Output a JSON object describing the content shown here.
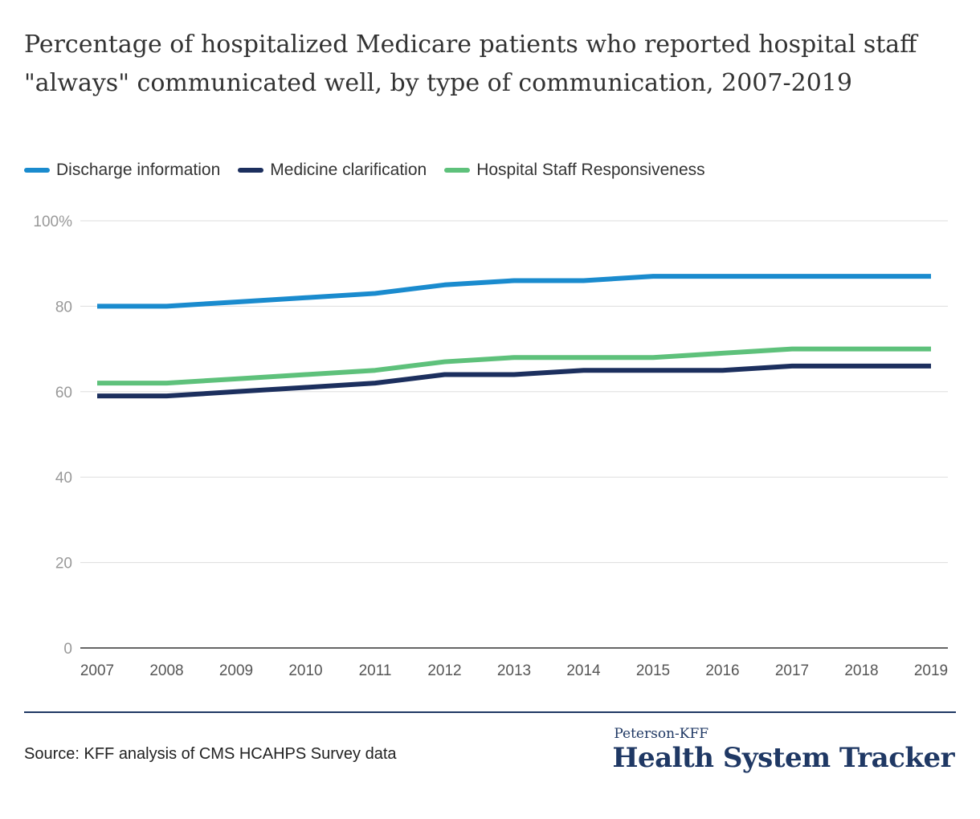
{
  "chart_data": {
    "type": "line",
    "title": "Percentage of hospitalized Medicare patients who reported hospital staff \"always\" communicated well, by type of communication, 2007-2019",
    "x": [
      "2007",
      "2008",
      "2009",
      "2010",
      "2011",
      "2012",
      "2013",
      "2014",
      "2015",
      "2016",
      "2017",
      "2018",
      "2019"
    ],
    "ylim": [
      0,
      100
    ],
    "yticks": [
      0,
      20,
      40,
      60,
      80,
      100
    ],
    "ytick_labels": [
      "0",
      "20",
      "40",
      "60",
      "80",
      "100%"
    ],
    "grid": true,
    "legend_position": "top-left",
    "series": [
      {
        "name": "Discharge information",
        "color": "#1a8bce",
        "values": [
          80,
          80,
          81,
          82,
          83,
          85,
          86,
          86,
          87,
          87,
          87,
          87,
          87
        ]
      },
      {
        "name": "Medicine clarification",
        "color": "#1c2f5e",
        "values": [
          59,
          59,
          60,
          61,
          62,
          64,
          64,
          65,
          65,
          65,
          66,
          66,
          66
        ]
      },
      {
        "name": "Hospital Staff Responsiveness",
        "color": "#5ec17b",
        "values": [
          62,
          62,
          63,
          64,
          65,
          67,
          68,
          68,
          68,
          69,
          70,
          70,
          70
        ]
      }
    ]
  },
  "source": "Source: KFF analysis of CMS HCAHPS Survey data",
  "brand": {
    "top": "Peterson-KFF",
    "main": "Health System Tracker"
  }
}
